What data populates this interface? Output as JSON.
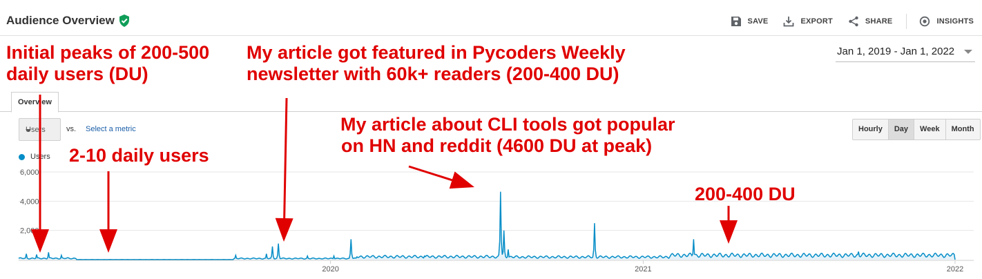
{
  "header": {
    "title": "Audience Overview",
    "actions": [
      {
        "label": "SAVE",
        "icon": "save-icon"
      },
      {
        "label": "EXPORT",
        "icon": "export-icon"
      },
      {
        "label": "SHARE",
        "icon": "share-icon"
      },
      {
        "label": "INSIGHTS",
        "icon": "insights-icon"
      }
    ]
  },
  "date_range": "Jan 1, 2019 - Jan 1, 2022",
  "tabs": [
    {
      "label": "Overview"
    }
  ],
  "controls": {
    "metric": "Users",
    "vs": "vs.",
    "select_metric": "Select a metric",
    "granularity": [
      "Hourly",
      "Day",
      "Week",
      "Month"
    ],
    "active_granularity": "Day"
  },
  "legend": {
    "label": "Users",
    "color": "#058dc7"
  },
  "chart_data": {
    "type": "area",
    "series": [
      {
        "name": "Users",
        "color": "#058dc7"
      }
    ],
    "x_range": [
      "2019-01-01",
      "2022-01-01"
    ],
    "x_ticks": [
      "2020",
      "2021",
      "2022"
    ],
    "y_ticks": [
      "2,000",
      "4,000",
      "6,000"
    ],
    "ylim": [
      0,
      6000
    ],
    "baseline_by_period": [
      {
        "from": "2019-01-01",
        "to": "2019-03-10",
        "daily_users": 90
      },
      {
        "from": "2019-03-10",
        "to": "2019-09-10",
        "daily_users": 6
      },
      {
        "from": "2019-09-10",
        "to": "2020-02-01",
        "daily_users": 80
      },
      {
        "from": "2020-02-01",
        "to": "2020-07-15",
        "daily_users": 200
      },
      {
        "from": "2020-07-15",
        "to": "2021-02-01",
        "daily_users": 180
      },
      {
        "from": "2021-02-01",
        "to": "2022-01-01",
        "daily_users": 300
      }
    ],
    "peaks": [
      {
        "date": "2019-01-10",
        "value": 400
      },
      {
        "date": "2019-01-22",
        "value": 350
      },
      {
        "date": "2019-02-05",
        "value": 500
      },
      {
        "date": "2019-02-20",
        "value": 300
      },
      {
        "date": "2019-09-12",
        "value": 300
      },
      {
        "date": "2019-10-18",
        "value": 400
      },
      {
        "date": "2019-10-25",
        "value": 900
      },
      {
        "date": "2019-11-01",
        "value": 1100
      },
      {
        "date": "2019-12-05",
        "value": 250
      },
      {
        "date": "2020-01-05",
        "value": 250
      },
      {
        "date": "2020-01-25",
        "value": 1400
      },
      {
        "date": "2020-04-20",
        "value": 250
      },
      {
        "date": "2020-07-18",
        "value": 4650
      },
      {
        "date": "2020-07-22",
        "value": 2000
      },
      {
        "date": "2020-07-27",
        "value": 700
      },
      {
        "date": "2020-11-05",
        "value": 2500
      },
      {
        "date": "2021-03-01",
        "value": 1400
      },
      {
        "date": "2021-06-10",
        "value": 400
      },
      {
        "date": "2021-09-10",
        "value": 550
      }
    ]
  },
  "annotations": [
    {
      "text": "Initial peaks of 200-500\ndaily users (DU)"
    },
    {
      "text": "2-10 daily users"
    },
    {
      "text": "My article got featured in Pycoders Weekly\nnewsletter with 60k+ readers (200-400 DU)"
    },
    {
      "text": "My article about CLI tools got popular\non HN and reddit (4600 DU at peak)"
    },
    {
      "text": "200-400 DU"
    }
  ]
}
